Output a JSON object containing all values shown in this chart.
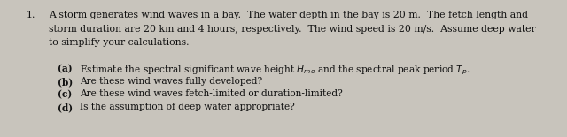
{
  "background_color": "#c8c4bc",
  "text_color": "#111111",
  "number": "1.",
  "line1": "A storm generates wind waves in a bay.  The water depth in the bay is 20 m.  The fetch length and",
  "line2": "storm duration are 20 km and 4 hours, respectively.  The wind speed is 20 m/s.  Assume deep water",
  "line3": "to simplify your calculations.",
  "parts": [
    {
      "label": "(a)",
      "text": "Estimate the spectral significant wave height $H_{mo}$ and the spectral peak period $T_p$."
    },
    {
      "label": "(b)",
      "text": "Are these wind waves fully developed?"
    },
    {
      "label": "(c)",
      "text": "Are these wind waves fetch-limited or duration-limited?"
    },
    {
      "label": "(d)",
      "text": "Is the assumption of deep water appropriate?"
    }
  ],
  "font_size_main": 7.8,
  "font_size_parts": 7.6,
  "fig_width": 6.4,
  "fig_height": 1.55,
  "dpi": 100
}
